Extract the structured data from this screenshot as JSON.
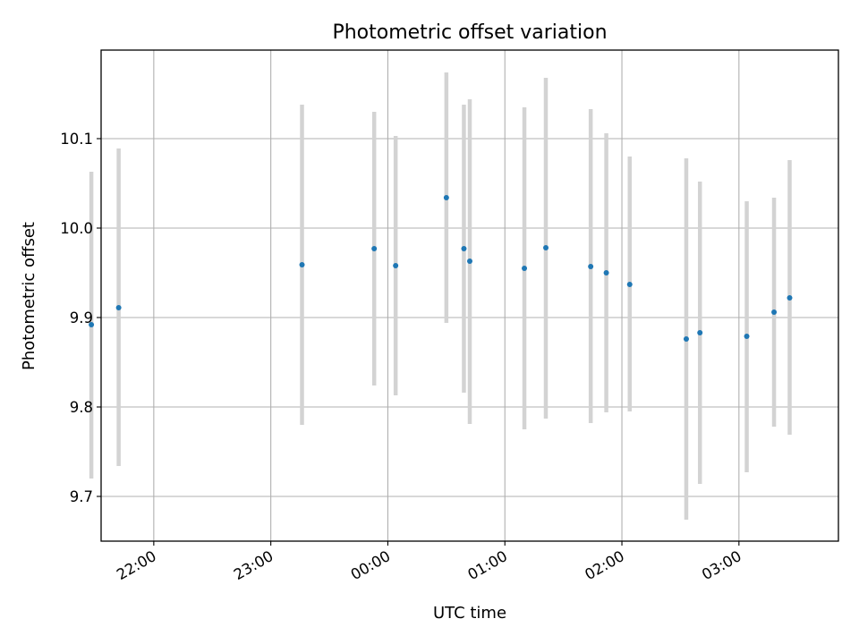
{
  "chart_data": {
    "type": "scatter",
    "title": "Photometric offset variation",
    "xlabel": "UTC time",
    "ylabel": "Photometric offset",
    "x_axis_type": "time",
    "x_range": [
      "21:33",
      "03:51"
    ],
    "ylim": [
      9.65,
      10.199
    ],
    "x_ticks": [
      "22:00",
      "23:00",
      "00:00",
      "01:00",
      "02:00",
      "03:00"
    ],
    "y_ticks": [
      9.7,
      9.8,
      9.9,
      10.0,
      10.1
    ],
    "y_tick_labels": [
      "9.7",
      "9.8",
      "9.9",
      "10.0",
      "10.1"
    ],
    "grid": true,
    "legend": "none",
    "colors": {
      "point": "#1f77b4",
      "errorbar": "#d3d3d3",
      "grid": "#b0b0b0",
      "axes": "#000000"
    },
    "series": [
      {
        "points": [
          {
            "x": "21:28",
            "y": 9.892,
            "err_low": 9.72,
            "err_high": 10.063
          },
          {
            "x": "21:42",
            "y": 9.911,
            "err_low": 9.734,
            "err_high": 10.089
          },
          {
            "x": "23:16",
            "y": 9.959,
            "err_low": 9.78,
            "err_high": 10.138
          },
          {
            "x": "23:53",
            "y": 9.977,
            "err_low": 9.824,
            "err_high": 10.13
          },
          {
            "x": "00:04",
            "y": 9.958,
            "err_low": 9.813,
            "err_high": 10.103
          },
          {
            "x": "00:30",
            "y": 10.034,
            "err_low": 9.894,
            "err_high": 10.174
          },
          {
            "x": "00:39",
            "y": 9.977,
            "err_low": 9.816,
            "err_high": 10.138
          },
          {
            "x": "00:42",
            "y": 9.963,
            "err_low": 9.781,
            "err_high": 10.144
          },
          {
            "x": "01:10",
            "y": 9.955,
            "err_low": 9.775,
            "err_high": 10.135
          },
          {
            "x": "01:21",
            "y": 9.978,
            "err_low": 9.787,
            "err_high": 10.168
          },
          {
            "x": "01:44",
            "y": 9.957,
            "err_low": 9.782,
            "err_high": 10.133
          },
          {
            "x": "01:52",
            "y": 9.95,
            "err_low": 9.794,
            "err_high": 10.106
          },
          {
            "x": "02:04",
            "y": 9.937,
            "err_low": 9.795,
            "err_high": 10.08
          },
          {
            "x": "02:33",
            "y": 9.876,
            "err_low": 9.674,
            "err_high": 10.078
          },
          {
            "x": "02:40",
            "y": 9.883,
            "err_low": 9.714,
            "err_high": 10.052
          },
          {
            "x": "03:04",
            "y": 9.879,
            "err_low": 9.727,
            "err_high": 10.03
          },
          {
            "x": "03:18",
            "y": 9.906,
            "err_low": 9.778,
            "err_high": 10.034
          },
          {
            "x": "03:26",
            "y": 9.922,
            "err_low": 9.769,
            "err_high": 10.076
          }
        ]
      }
    ]
  }
}
